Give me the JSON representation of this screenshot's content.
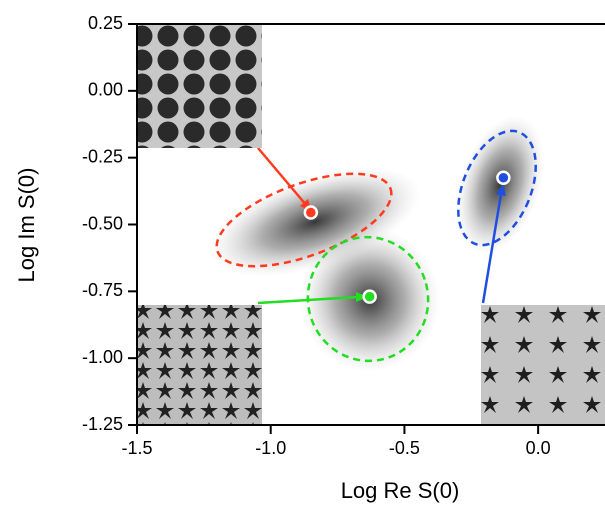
{
  "chart_data": {
    "type": "scatter",
    "xlabel": "Log Re S(0)",
    "ylabel": "Log Im S(0)",
    "xlim": [
      -1.5,
      0.25
    ],
    "ylim": [
      -1.25,
      0.25
    ],
    "xticks": [
      -1.5,
      {
        "value": -1,
        "label": "-1.0"
      },
      -0.5,
      {
        "value": 0,
        "label": "0.0"
      }
    ],
    "yticks": [
      0.25,
      {
        "value": 0,
        "label": "0.00"
      },
      -0.25,
      {
        "value": -0.5,
        "label": "-0.50"
      },
      -0.75,
      {
        "value": -1,
        "label": "-1.00"
      },
      -1.25
    ],
    "series": [
      {
        "color": "#ff3b1f",
        "x": [
          -0.85
        ],
        "values": [
          -0.455
        ]
      },
      {
        "color": "#22dd22",
        "x": [
          -0.63
        ],
        "values": [
          -0.77
        ]
      },
      {
        "color": "#1f4fe0",
        "x": [
          -0.13
        ],
        "values": [
          -0.325
        ]
      }
    ]
  }
}
